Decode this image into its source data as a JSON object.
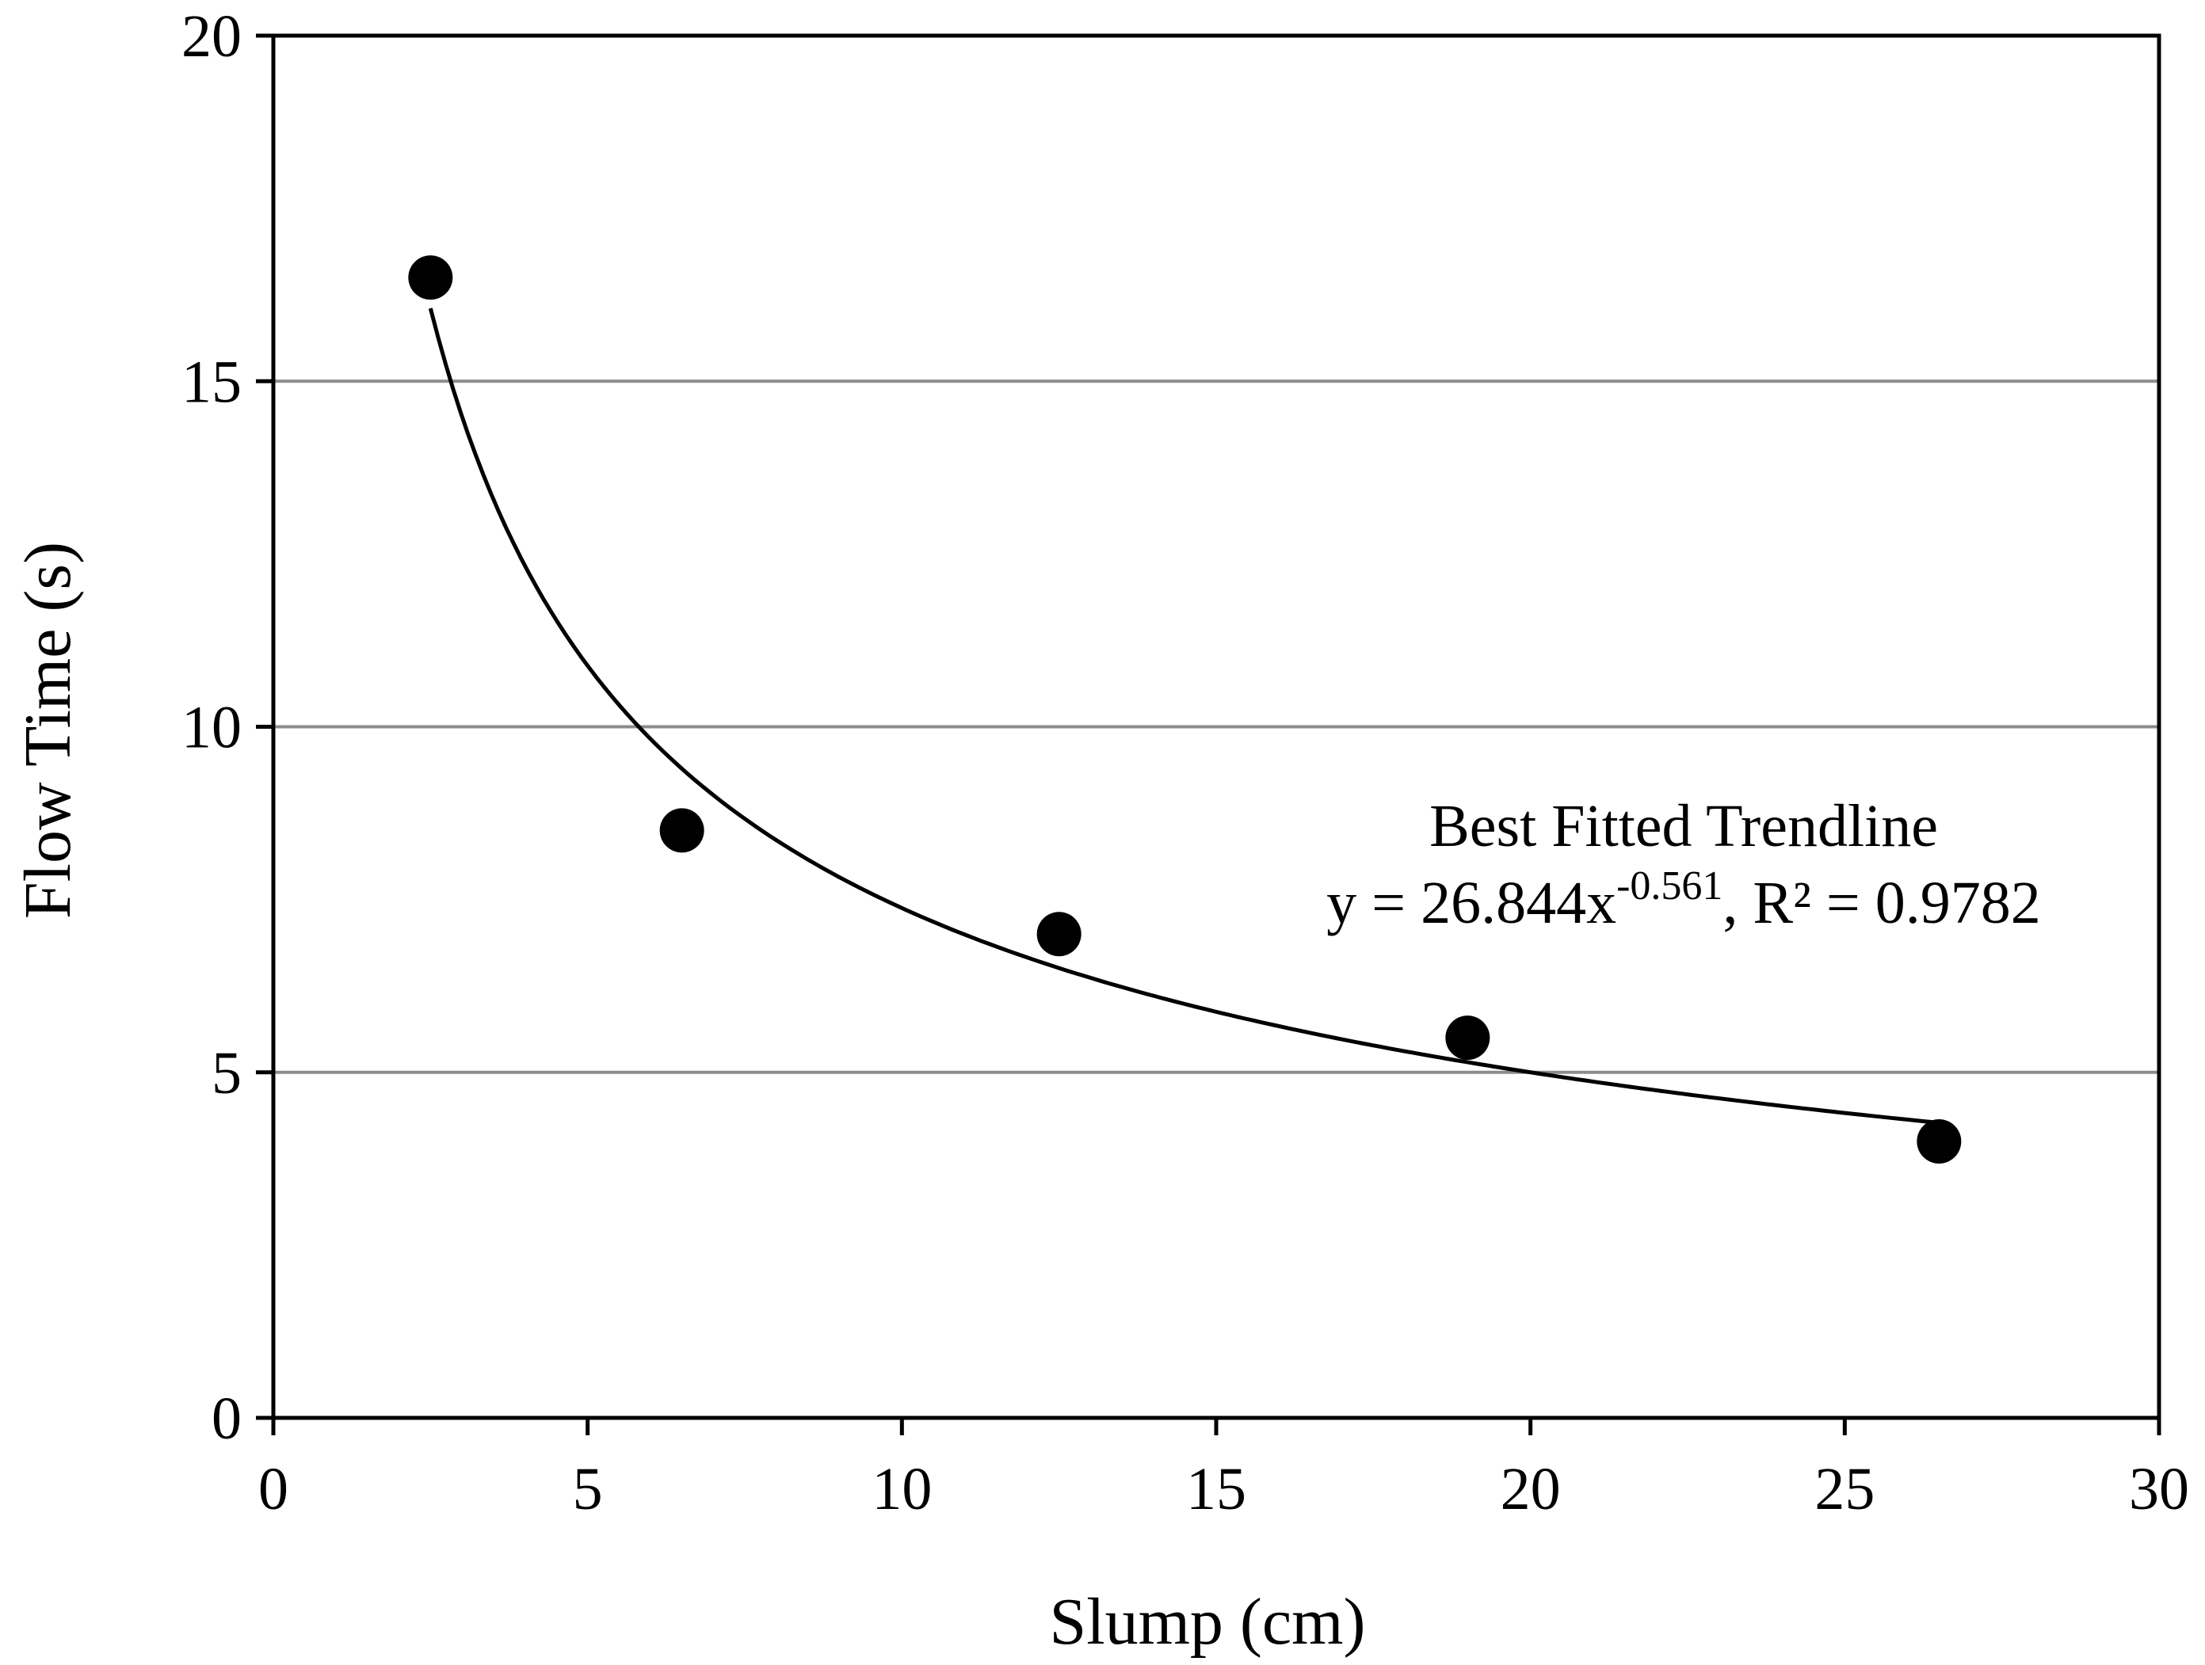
{
  "chart_data": {
    "type": "scatter",
    "title": "",
    "xlabel": "Slump (cm)",
    "ylabel": "Flow Time (s)",
    "xlim": [
      0,
      30
    ],
    "ylim": [
      0,
      20
    ],
    "xticks": [
      0,
      5,
      10,
      15,
      20,
      25,
      30
    ],
    "yticks": [
      0,
      5,
      10,
      15,
      20
    ],
    "xtick_labels": [
      "0",
      "5",
      "10",
      "15",
      "20",
      "25",
      "30"
    ],
    "ytick_labels": [
      "0",
      "5",
      "10",
      "15",
      "20"
    ],
    "grid": "horizontal",
    "legend": "none",
    "colors": {
      "points": "#000000",
      "trendline": "#000000",
      "grid": "#8c8c8c",
      "axes": "#000000"
    },
    "series": [
      {
        "x": [
          2.5,
          6.5,
          12.5,
          19,
          26.5
        ],
        "y": [
          16.5,
          8.5,
          7.0,
          5.5,
          4.0
        ]
      }
    ],
    "trendline": {
      "type": "power",
      "a": 26.844,
      "b": -0.561,
      "x_range": [
        2.5,
        26.5
      ]
    },
    "annotations": {
      "line1": "Best Fitted Trendline",
      "eq_prefix": "y = 26.844x",
      "eq_exponent": "-0.561",
      "eq_suffix": ", R² = 0.9782"
    }
  }
}
